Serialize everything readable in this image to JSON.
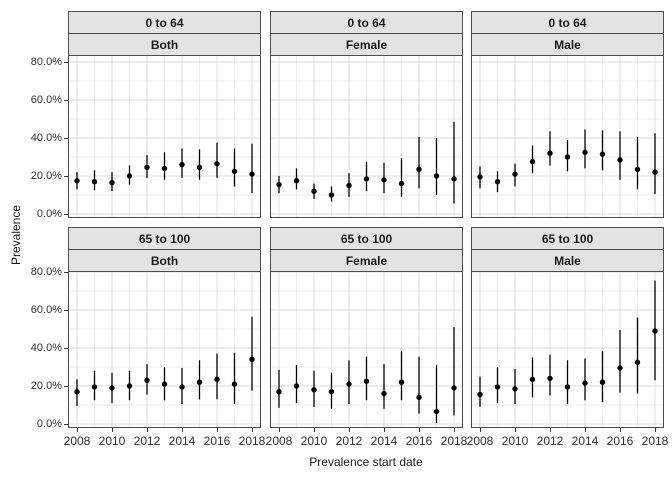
{
  "styles": {
    "point_color": "#000000",
    "errorbar_color": "#000000",
    "strip_bg": "#e3e3e3",
    "panel_border": "#4d4d4d",
    "grid_major": "#dedede",
    "grid_minor": "#ededed",
    "tick_label_color": "#333333",
    "axis_title_color": "#1a1a1a",
    "panel_bg": "#ffffff"
  },
  "chart_data": {
    "type": "scatter",
    "subtype": "pointrange-with-confidence-intervals",
    "title": "",
    "xlabel": "Prevalence start date",
    "ylabel": "Prevalence",
    "grid": true,
    "legend": "none",
    "facet_layout": "2 rows (age group) x 3 cols (sex)",
    "facet_rows": [
      "0 to 64",
      "65 to 100"
    ],
    "facet_cols": [
      "Both",
      "Female",
      "Male"
    ],
    "x": [
      2008,
      2009,
      2010,
      2011,
      2012,
      2013,
      2014,
      2015,
      2016,
      2017,
      2018
    ],
    "xlim": [
      2007.5,
      2018.5
    ],
    "x_ticks": [
      2008,
      2010,
      2012,
      2014,
      2016,
      2018
    ],
    "x_tick_labels": [
      "2008",
      "2010",
      "2012",
      "2014",
      "2016",
      "2018"
    ],
    "ylim": [
      -3,
      83
    ],
    "y_ticks": [
      80,
      60,
      40,
      20,
      0
    ],
    "y_tick_labels": [
      "80.0%",
      "60.0%",
      "40.0%",
      "20.0%",
      "0.0%"
    ],
    "y_minor_ticks": [
      10,
      30,
      50,
      70
    ],
    "y_unit": "percent",
    "facets": [
      {
        "age_group": "0 to 64",
        "sex": "Both",
        "estimate": [
          17.5,
          17.0,
          16.5,
          20.0,
          24.5,
          24.0,
          26.0,
          24.5,
          26.5,
          22.5,
          21.0
        ],
        "lower": [
          13.0,
          12.5,
          12.0,
          15.5,
          19.0,
          18.0,
          19.0,
          18.0,
          19.0,
          14.5,
          11.0
        ],
        "upper": [
          22.0,
          23.0,
          22.0,
          25.5,
          31.0,
          32.5,
          34.5,
          34.0,
          37.5,
          34.5,
          37.0
        ]
      },
      {
        "age_group": "0 to 64",
        "sex": "Female",
        "estimate": [
          15.5,
          17.5,
          12.0,
          10.0,
          15.0,
          18.5,
          18.0,
          16.0,
          23.5,
          20.0,
          18.5
        ],
        "lower": [
          11.0,
          13.0,
          8.0,
          6.5,
          9.0,
          12.0,
          11.0,
          9.0,
          13.5,
          10.0,
          5.5
        ],
        "upper": [
          20.0,
          24.0,
          16.0,
          14.5,
          21.5,
          27.5,
          27.0,
          29.5,
          40.5,
          40.0,
          48.5
        ]
      },
      {
        "age_group": "0 to 64",
        "sex": "Male",
        "estimate": [
          19.5,
          17.0,
          21.0,
          27.5,
          32.0,
          30.0,
          32.5,
          31.5,
          28.5,
          23.5,
          22.0
        ],
        "lower": [
          13.5,
          11.5,
          14.5,
          21.5,
          25.5,
          22.5,
          24.0,
          23.0,
          18.0,
          13.0,
          10.5
        ],
        "upper": [
          25.0,
          22.5,
          26.5,
          36.0,
          43.5,
          39.0,
          44.5,
          44.0,
          43.5,
          40.5,
          42.5
        ]
      },
      {
        "age_group": "65 to 100",
        "sex": "Both",
        "estimate": [
          17.0,
          19.5,
          19.0,
          20.0,
          23.0,
          21.0,
          19.5,
          22.0,
          23.5,
          21.0,
          34.0
        ],
        "lower": [
          9.5,
          12.5,
          11.0,
          12.5,
          15.5,
          12.5,
          10.5,
          13.0,
          13.0,
          10.5,
          17.5
        ],
        "upper": [
          23.5,
          28.0,
          27.0,
          28.0,
          31.5,
          30.0,
          29.5,
          33.5,
          37.0,
          37.5,
          56.5
        ]
      },
      {
        "age_group": "65 to 100",
        "sex": "Female",
        "estimate": [
          17.0,
          20.0,
          18.0,
          17.0,
          21.0,
          22.5,
          16.0,
          22.0,
          14.0,
          6.5,
          19.0
        ],
        "lower": [
          8.5,
          11.0,
          9.0,
          8.0,
          10.5,
          12.5,
          8.0,
          12.5,
          5.5,
          0.5,
          4.5
        ],
        "upper": [
          28.5,
          31.0,
          28.0,
          27.0,
          33.5,
          35.5,
          31.5,
          38.5,
          35.5,
          31.0,
          51.0
        ]
      },
      {
        "age_group": "65 to 100",
        "sex": "Male",
        "estimate": [
          15.5,
          19.5,
          18.5,
          23.5,
          24.0,
          19.5,
          21.5,
          22.0,
          29.5,
          32.5,
          49.0
        ],
        "lower": [
          9.0,
          11.0,
          10.5,
          14.0,
          15.0,
          10.5,
          12.5,
          11.5,
          16.5,
          16.0,
          23.0
        ],
        "upper": [
          25.0,
          30.0,
          29.0,
          35.0,
          36.5,
          33.5,
          34.5,
          38.5,
          49.5,
          56.0,
          75.5
        ]
      }
    ]
  }
}
